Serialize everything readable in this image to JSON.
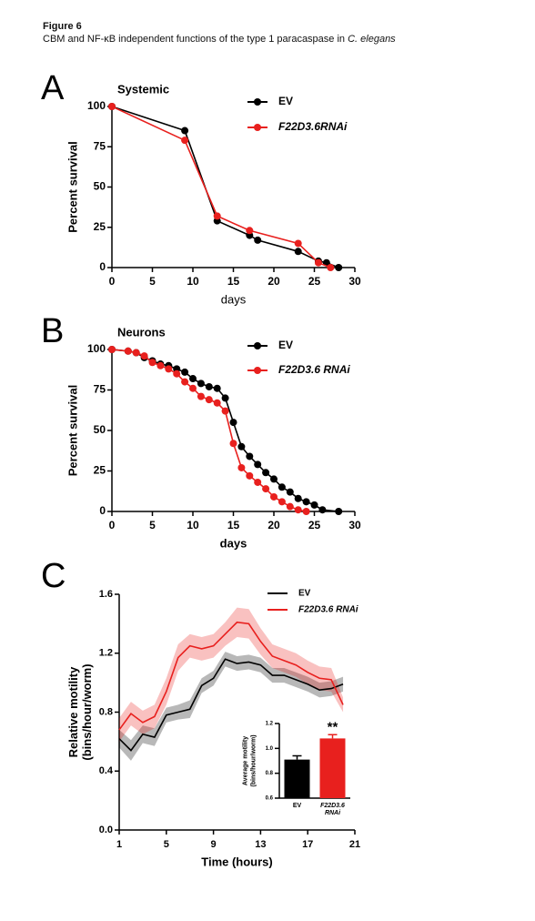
{
  "header": {
    "title": "Figure 6",
    "caption": "CBM and NF-κB independent functions of the type 1 paracaspase in",
    "caption_italic": "C. elegans"
  },
  "chart_data": [
    {
      "type": "line",
      "panel": "A",
      "title": "Systemic",
      "xlabel": "days",
      "ylabel": "Percent survival",
      "markers": true,
      "legend": "upper right",
      "xlim": [
        0,
        30
      ],
      "xticks": [
        0,
        5,
        10,
        15,
        20,
        25,
        30
      ],
      "ylim": [
        0,
        100
      ],
      "yticks": [
        0,
        25,
        50,
        75,
        100
      ],
      "series": [
        {
          "name": "EV",
          "color": "#000000",
          "x": [
            0,
            9,
            13,
            17,
            18,
            23,
            25.5,
            26.5,
            28
          ],
          "values": [
            100,
            85,
            29,
            20,
            17,
            10,
            4,
            3,
            0
          ]
        },
        {
          "name": "F22D3.6RNAi",
          "color": "#e8201e",
          "x": [
            0,
            9,
            13,
            17,
            23,
            25.5,
            27
          ],
          "values": [
            100,
            79,
            32,
            23,
            15,
            3,
            0
          ]
        }
      ]
    },
    {
      "type": "line",
      "panel": "B",
      "title": "Neurons",
      "xlabel": "days",
      "ylabel": "Percent survival",
      "markers": true,
      "legend": "upper right",
      "xlim": [
        0,
        30
      ],
      "xticks": [
        0,
        5,
        10,
        15,
        20,
        25,
        30
      ],
      "ylim": [
        0,
        100
      ],
      "yticks": [
        0,
        25,
        50,
        75,
        100
      ],
      "series": [
        {
          "name": "EV",
          "color": "#000000",
          "x": [
            0,
            2,
            3,
            4,
            5,
            6,
            7,
            8,
            9,
            10,
            11,
            12,
            13,
            14,
            15,
            16,
            17,
            18,
            19,
            20,
            21,
            22,
            23,
            24,
            25,
            26,
            28
          ],
          "values": [
            100,
            99,
            98,
            95,
            93,
            91,
            90,
            88,
            86,
            82,
            79,
            77,
            76,
            70,
            55,
            40,
            34,
            29,
            24,
            20,
            15,
            12,
            8,
            6,
            4,
            1,
            0
          ]
        },
        {
          "name": "F22D3.6 RNAi",
          "color": "#e8201e",
          "x": [
            0,
            2,
            3,
            4,
            5,
            6,
            7,
            8,
            9,
            10,
            11,
            12,
            13,
            14,
            15,
            16,
            17,
            18,
            19,
            20,
            21,
            22,
            23,
            24
          ],
          "values": [
            100,
            99,
            98,
            96,
            92,
            90,
            88,
            85,
            80,
            76,
            71,
            69,
            67,
            62,
            42,
            27,
            22,
            18,
            14,
            9,
            6,
            3,
            1,
            0
          ]
        }
      ]
    },
    {
      "type": "line",
      "panel": "C",
      "xlabel": "Time (hours)",
      "ylabel": [
        "Relative motility",
        "(bins/hour/worm)"
      ],
      "markers": false,
      "legend": "upper right",
      "xlim": [
        1,
        21
      ],
      "xticks": [
        1,
        5,
        9,
        13,
        17,
        21
      ],
      "ylim": [
        0,
        1.6
      ],
      "yticks": [
        {
          "value": 0,
          "label": "0.0"
        },
        0.4,
        0.8,
        1.2,
        1.6
      ],
      "series": [
        {
          "name": "EV",
          "color": "#000000",
          "x": [
            1,
            2,
            3,
            4,
            5,
            6,
            7,
            8,
            9,
            10,
            11,
            12,
            13,
            14,
            15,
            16,
            17,
            18,
            19,
            20
          ],
          "values": [
            0.62,
            0.54,
            0.65,
            0.63,
            0.78,
            0.8,
            0.82,
            0.98,
            1.03,
            1.16,
            1.13,
            1.14,
            1.12,
            1.05,
            1.05,
            1.02,
            0.99,
            0.95,
            0.96,
            0.99
          ],
          "errors": [
            0.06,
            0.07,
            0.06,
            0.06,
            0.05,
            0.05,
            0.06,
            0.05,
            0.05,
            0.05,
            0.05,
            0.05,
            0.05,
            0.05,
            0.05,
            0.05,
            0.05,
            0.05,
            0.05,
            0.05
          ]
        },
        {
          "name": "F22D3.6 RNAi",
          "color": "#e8201e",
          "x": [
            1,
            2,
            3,
            4,
            5,
            6,
            7,
            8,
            9,
            10,
            11,
            12,
            13,
            14,
            15,
            16,
            17,
            18,
            19,
            20
          ],
          "values": [
            0.68,
            0.79,
            0.73,
            0.77,
            0.94,
            1.17,
            1.25,
            1.23,
            1.25,
            1.33,
            1.41,
            1.4,
            1.28,
            1.18,
            1.15,
            1.12,
            1.07,
            1.03,
            1.02,
            0.85
          ],
          "errors": [
            0.08,
            0.08,
            0.08,
            0.08,
            0.09,
            0.09,
            0.08,
            0.08,
            0.08,
            0.08,
            0.1,
            0.1,
            0.09,
            0.08,
            0.08,
            0.08,
            0.08,
            0.08,
            0.08,
            0.05
          ]
        }
      ],
      "inset": {
        "type": "bar",
        "ylabel": [
          "Average motility",
          "(bins/hour/worm)"
        ],
        "ylim": [
          0.6,
          1.2
        ],
        "yticks": [
          0.6,
          0.8,
          {
            "value": 1,
            "label": "1.0"
          },
          1.2
        ],
        "categories": [
          "EV",
          "F22D3.6 RNAi"
        ],
        "values": [
          0.91,
          1.08
        ],
        "errors": [
          0.03,
          0.03
        ],
        "colors": [
          "#000000",
          "#e8201e"
        ],
        "annotation": "**"
      }
    }
  ]
}
